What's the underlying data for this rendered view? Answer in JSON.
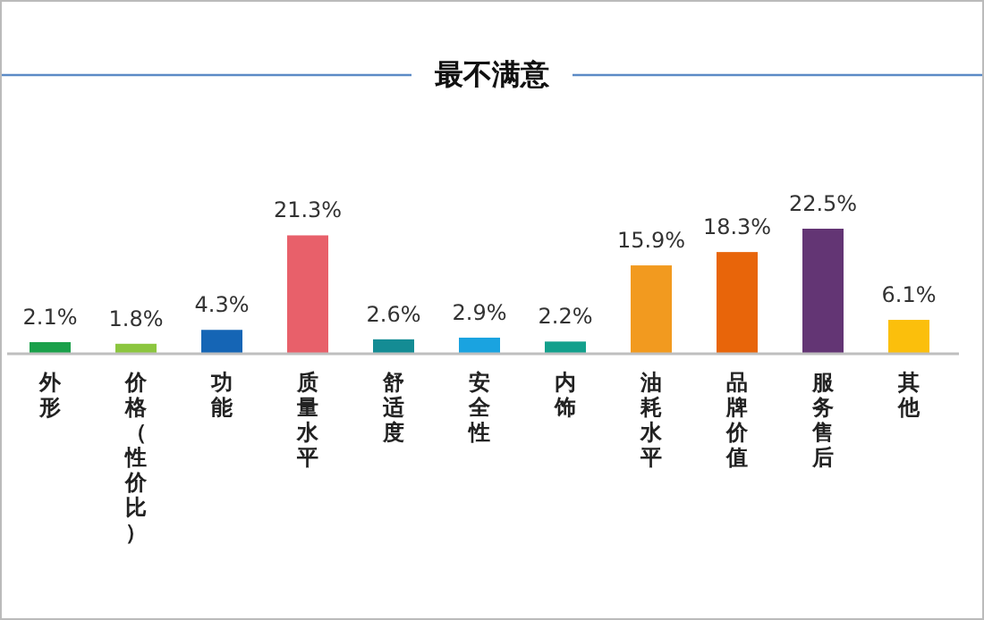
{
  "chart_data": {
    "type": "bar",
    "title": "最不满意",
    "categories": [
      "外形",
      "价格（性价比）",
      "功能",
      "质量水平",
      "舒适度",
      "安全性",
      "内饰",
      "油耗水平",
      "品牌价值",
      "服务售后",
      "其他"
    ],
    "values": [
      2.1,
      1.8,
      4.3,
      21.3,
      2.6,
      2.9,
      2.2,
      15.9,
      18.3,
      22.5,
      6.1
    ],
    "value_labels": [
      "2.1%",
      "1.8%",
      "4.3%",
      "21.3%",
      "2.6%",
      "2.9%",
      "2.2%",
      "15.9%",
      "18.3%",
      "22.5%",
      "6.1%"
    ],
    "colors": [
      "#1aa04a",
      "#8cc63f",
      "#1565b5",
      "#e8606a",
      "#148c94",
      "#1aa3e0",
      "#13a08c",
      "#f29a1f",
      "#e8650a",
      "#633574",
      "#fbbf0c"
    ]
  }
}
